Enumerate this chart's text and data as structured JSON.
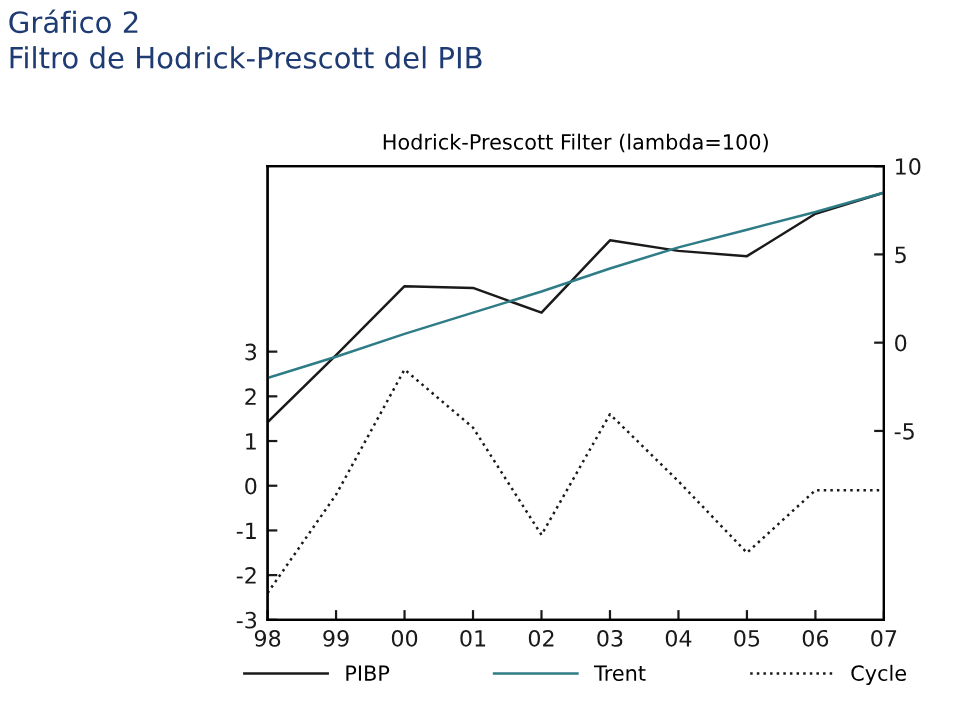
{
  "chart_data": {
    "type": "line",
    "title": "Hodrick-Prescott Filter (lambda=100)",
    "annotations": [
      "Gráfico 2",
      "Filtro de Hodrick-Prescott del PIB"
    ],
    "categories": [
      "98",
      "99",
      "00",
      "01",
      "02",
      "03",
      "04",
      "05",
      "06",
      "07"
    ],
    "series": [
      {
        "name": "PIBP",
        "color": "#1a1a1a",
        "axis": "y2",
        "line_style": "solid",
        "values": [
          -4.5,
          -0.7,
          3.2,
          3.1,
          1.7,
          5.8,
          5.2,
          4.9,
          7.3,
          8.5
        ]
      },
      {
        "name": "Trent",
        "color": "#2e7d86",
        "axis": "y2",
        "line_style": "solid",
        "values": [
          -2.0,
          -0.8,
          0.5,
          1.7,
          2.9,
          4.2,
          5.4,
          6.4,
          7.4,
          8.5
        ]
      },
      {
        "name": "Cycle",
        "color": "#1a1a1a",
        "axis": "y",
        "line_style": "dotted",
        "values": [
          -2.4,
          -0.2,
          2.6,
          1.3,
          -1.1,
          1.6,
          0.1,
          -1.5,
          -0.1,
          -0.1
        ]
      }
    ],
    "ylim": [
      -3,
      7.15
    ],
    "yticks": [
      -3,
      -2,
      -1,
      0,
      1,
      2,
      3
    ],
    "y2lim": [
      -15.7,
      10
    ],
    "y2ticks": [
      -5,
      0,
      5,
      10
    ],
    "grid": false,
    "legend": "bottom",
    "marker": "none"
  }
}
